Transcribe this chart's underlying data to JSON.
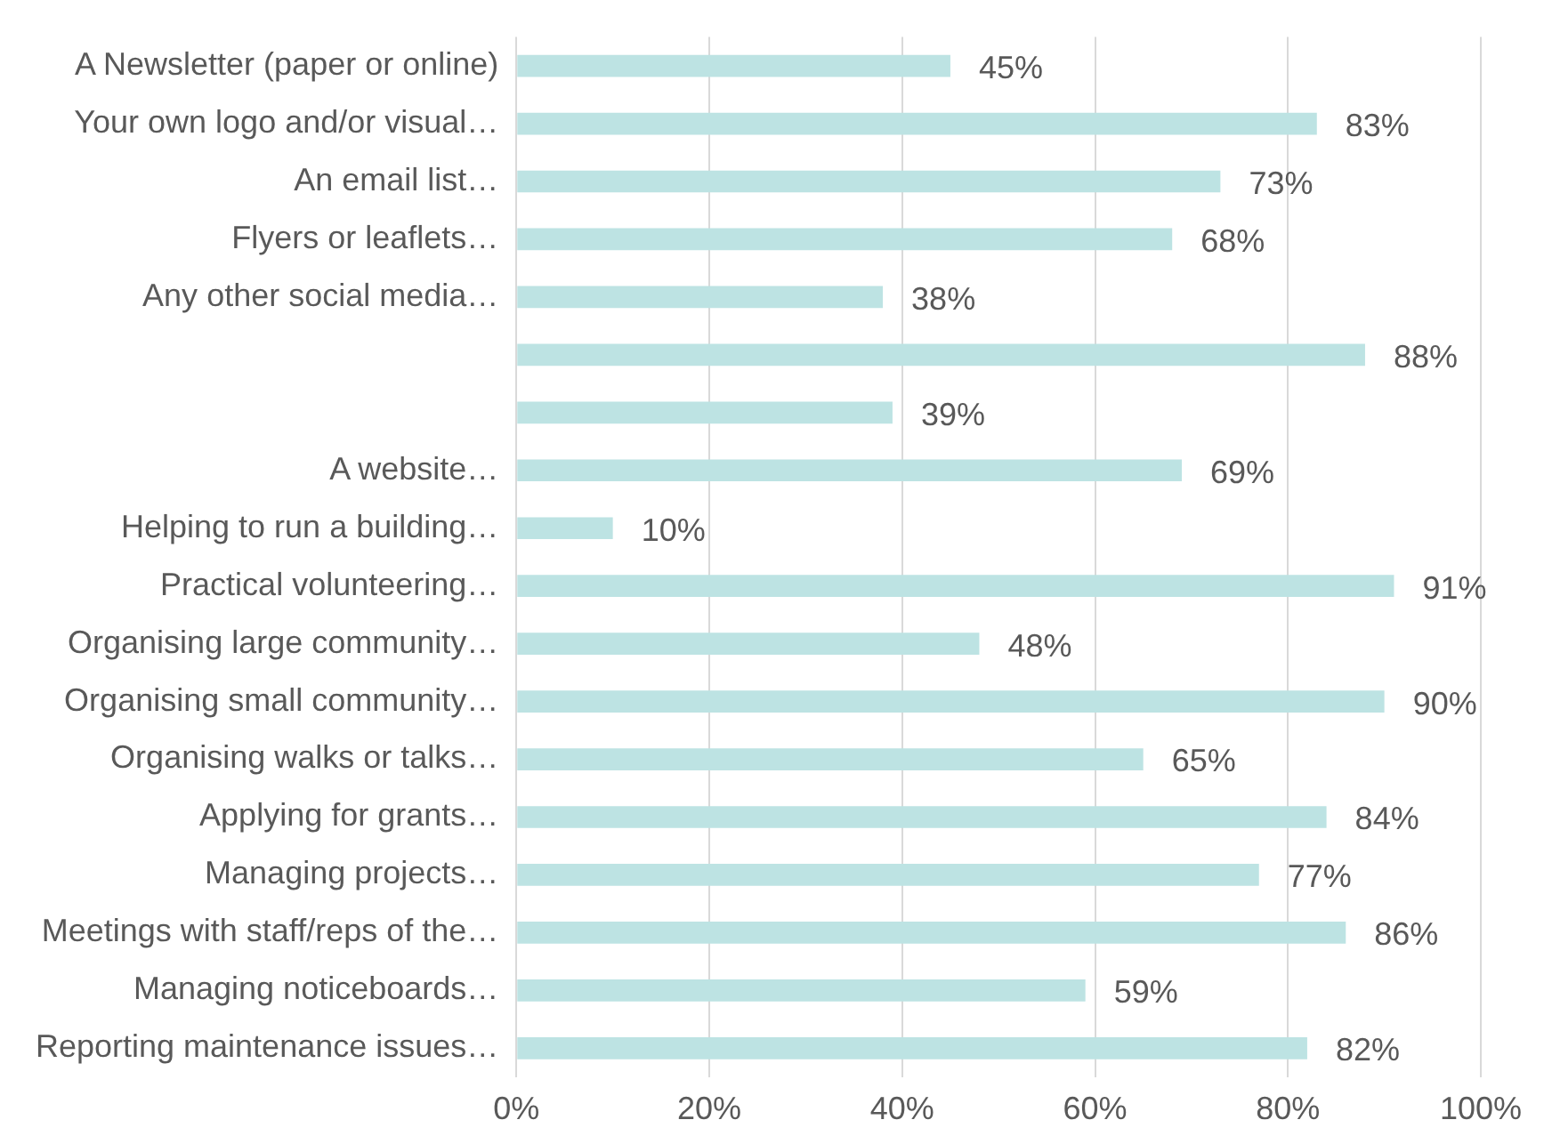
{
  "chart_data": {
    "type": "bar",
    "orientation": "horizontal",
    "categories": [
      "A Newsletter (paper or online)",
      "Your own logo and/or visual…",
      "An email list…",
      "Flyers or leaflets…",
      "Any other social media…",
      null,
      null,
      "A website…",
      "Helping to run a building…",
      "Practical volunteering…",
      "Organising large community…",
      "Organising small community…",
      "Organising walks or talks…",
      "Applying for grants…",
      "Managing projects…",
      "Meetings with staff/reps of the…",
      "Managing noticeboards…",
      "Reporting maintenance issues…"
    ],
    "values": [
      45,
      83,
      73,
      68,
      38,
      88,
      39,
      69,
      10,
      91,
      48,
      90,
      65,
      84,
      77,
      86,
      59,
      82
    ],
    "value_labels": [
      "45%",
      "83%",
      "73%",
      "68%",
      "38%",
      "88%",
      "39%",
      "69%",
      "10%",
      "91%",
      "48%",
      "90%",
      "65%",
      "84%",
      "77%",
      "86%",
      "59%",
      "82%"
    ],
    "color": "#bde3e3",
    "xlim": [
      0,
      100
    ],
    "xticks": [
      {
        "value": 0,
        "label": "0%"
      },
      {
        "value": 20,
        "label": "20%"
      },
      {
        "value": 40,
        "label": "40%"
      },
      {
        "value": 60,
        "label": "60%"
      },
      {
        "value": 80,
        "label": "80%"
      },
      {
        "value": 100,
        "label": "100%"
      }
    ],
    "grid": "x",
    "legend": false
  }
}
